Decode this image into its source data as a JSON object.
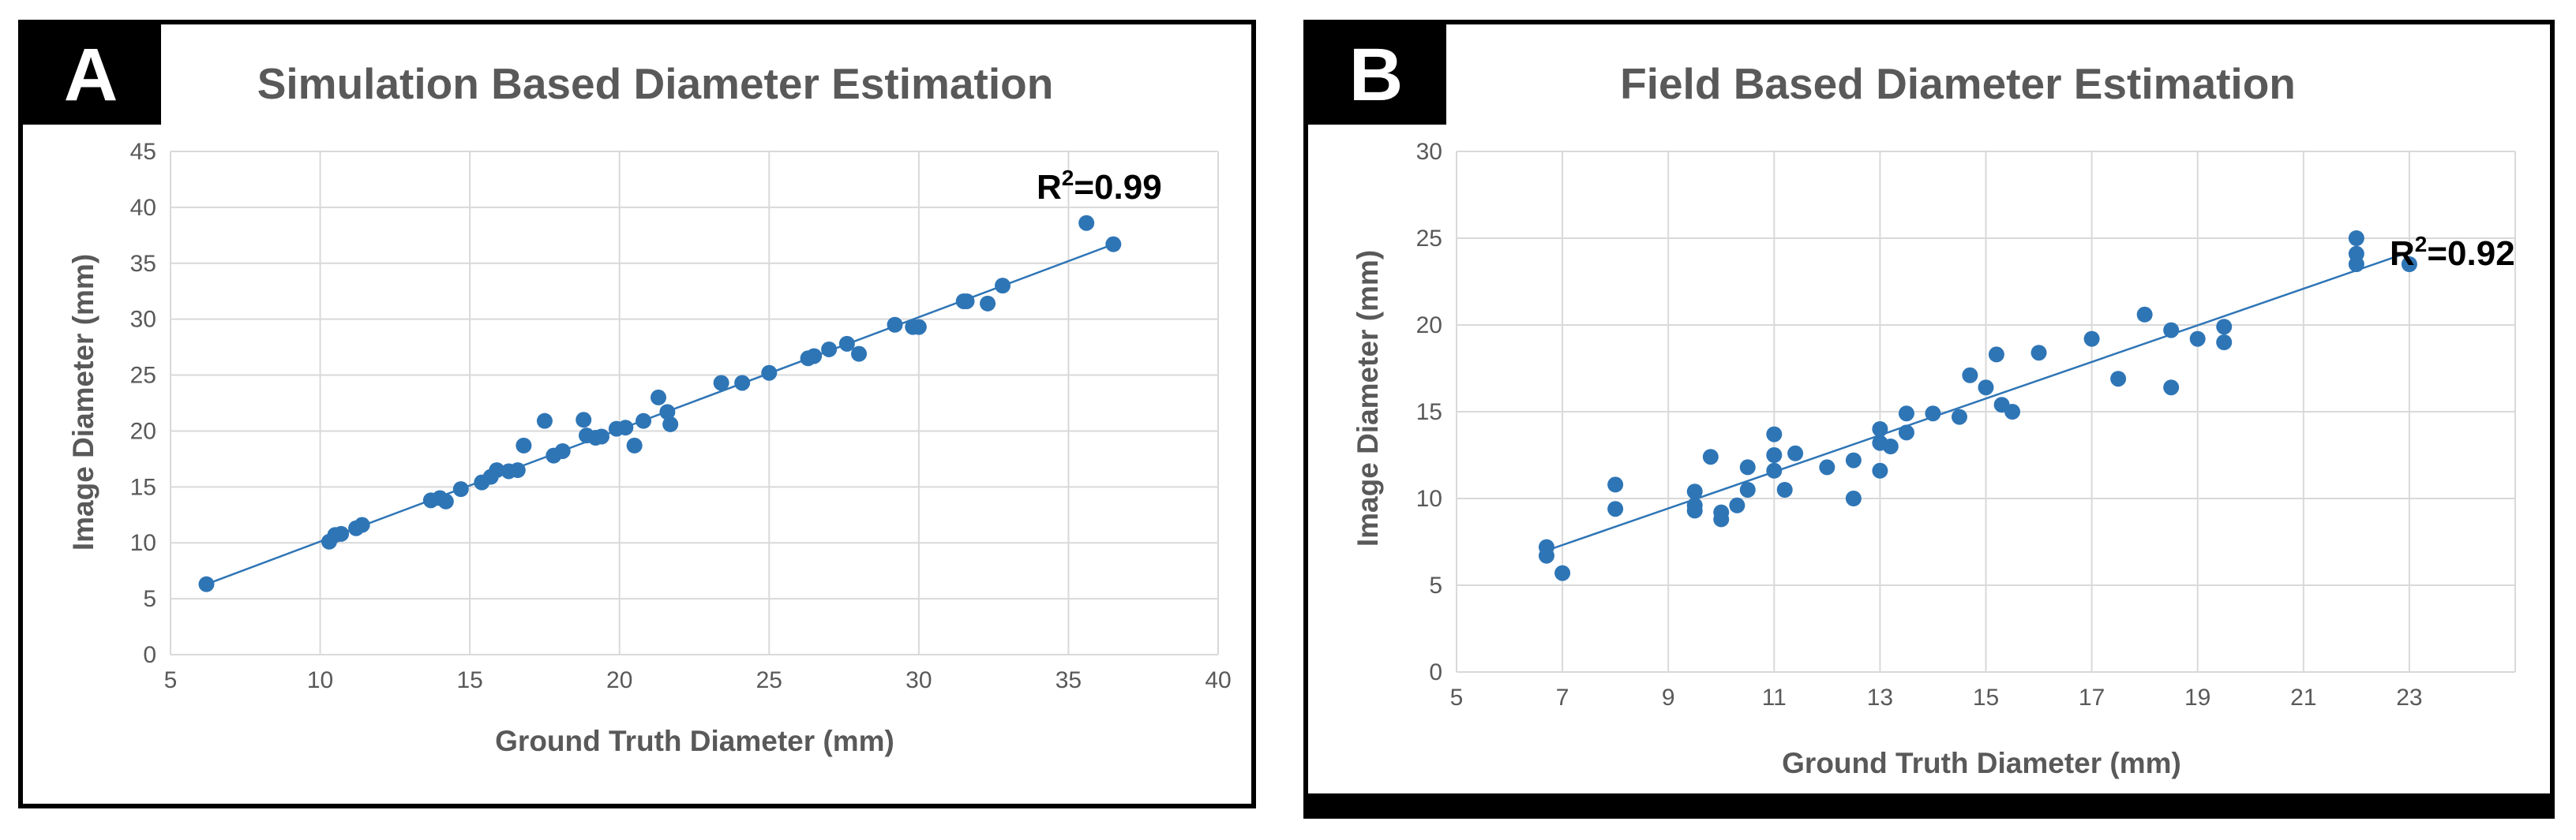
{
  "colors": {
    "marker": "#2e75b6",
    "grid": "#d9d9d9",
    "text": "#595959",
    "badge": "#000000"
  },
  "chart_data": [
    {
      "type": "scatter",
      "panel_label": "A",
      "title": "Simulation Based Diameter Estimation",
      "xlabel": "Ground Truth Diameter (mm)",
      "ylabel": "Image Diameter (mm)",
      "xlim": [
        5,
        40
      ],
      "ylim": [
        0,
        45
      ],
      "xticks": [
        "5",
        "10",
        "15",
        "20",
        "25",
        "30",
        "35",
        "40"
      ],
      "yticks": [
        "0",
        "5",
        "10",
        "15",
        "20",
        "25",
        "30",
        "35",
        "40",
        "45"
      ],
      "annotation": {
        "base": "R",
        "sup": "2",
        "rest": "=0.99"
      },
      "trendline": {
        "x": [
          6.2,
          36.5
        ],
        "y": [
          6.3,
          36.7
        ]
      },
      "x": [
        6.2,
        10.3,
        10.5,
        10.7,
        11.2,
        11.4,
        13.7,
        14.0,
        14.2,
        14.7,
        15.4,
        15.7,
        15.9,
        16.3,
        16.6,
        16.8,
        17.5,
        17.8,
        18.1,
        18.8,
        18.9,
        19.2,
        19.4,
        19.9,
        20.2,
        20.5,
        20.8,
        21.3,
        21.6,
        21.7,
        23.4,
        24.1,
        25.0,
        26.3,
        26.5,
        27.0,
        27.6,
        28.0,
        29.2,
        29.8,
        30.0,
        31.5,
        31.6,
        32.3,
        32.8,
        35.6,
        36.5
      ],
      "y": [
        6.3,
        10.1,
        10.7,
        10.8,
        11.3,
        11.6,
        13.8,
        14.0,
        13.7,
        14.8,
        15.4,
        15.9,
        16.5,
        16.4,
        16.5,
        18.7,
        20.9,
        17.8,
        18.2,
        21.0,
        19.6,
        19.4,
        19.5,
        20.2,
        20.3,
        18.7,
        20.9,
        23.0,
        21.7,
        20.6,
        24.3,
        24.3,
        25.2,
        26.5,
        26.7,
        27.3,
        27.8,
        26.9,
        29.5,
        29.3,
        29.3,
        31.6,
        31.6,
        31.4,
        33.0,
        38.6,
        36.7
      ]
    },
    {
      "type": "scatter",
      "panel_label": "B",
      "title": "Field Based Diameter Estimation",
      "xlabel": "Ground Truth Diameter (mm)",
      "ylabel": "Image Diameter (mm)",
      "xlim": [
        5,
        25
      ],
      "ylim": [
        0,
        30
      ],
      "xticks": [
        "5",
        "7",
        "9",
        "11",
        "13",
        "15",
        "17",
        "19",
        "21",
        "23"
      ],
      "yticks": [
        "0",
        "5",
        "10",
        "15",
        "20",
        "25",
        "30"
      ],
      "annotation": {
        "base": "R",
        "sup": "2",
        "rest": "=0.92"
      },
      "trendline": {
        "x": [
          6.7,
          23.0
        ],
        "y": [
          7.0,
          24.2
        ]
      },
      "x": [
        6.7,
        6.7,
        7.0,
        8.0,
        8.0,
        9.5,
        9.5,
        9.5,
        9.8,
        10.0,
        10.0,
        10.3,
        10.5,
        10.5,
        11.0,
        11.0,
        11.0,
        11.2,
        11.4,
        12.0,
        12.5,
        12.5,
        13.0,
        13.0,
        13.0,
        13.2,
        13.5,
        13.5,
        14.0,
        14.5,
        14.7,
        15.0,
        15.2,
        15.3,
        15.5,
        16.0,
        17.0,
        17.5,
        18.0,
        18.5,
        18.5,
        19.0,
        19.5,
        19.5,
        22.0,
        22.0,
        22.0,
        23.0
      ],
      "y": [
        7.2,
        6.7,
        5.7,
        10.8,
        9.4,
        10.4,
        9.6,
        9.3,
        12.4,
        9.2,
        8.8,
        9.6,
        11.8,
        10.5,
        13.7,
        12.5,
        11.6,
        10.5,
        12.6,
        11.8,
        12.2,
        10.0,
        14.0,
        13.2,
        11.6,
        13.0,
        14.9,
        13.8,
        14.9,
        14.7,
        17.1,
        16.4,
        18.3,
        15.4,
        15.0,
        18.4,
        19.2,
        16.9,
        20.6,
        19.7,
        16.4,
        19.2,
        19.9,
        19.0,
        25.0,
        24.1,
        23.5,
        23.5
      ]
    }
  ]
}
